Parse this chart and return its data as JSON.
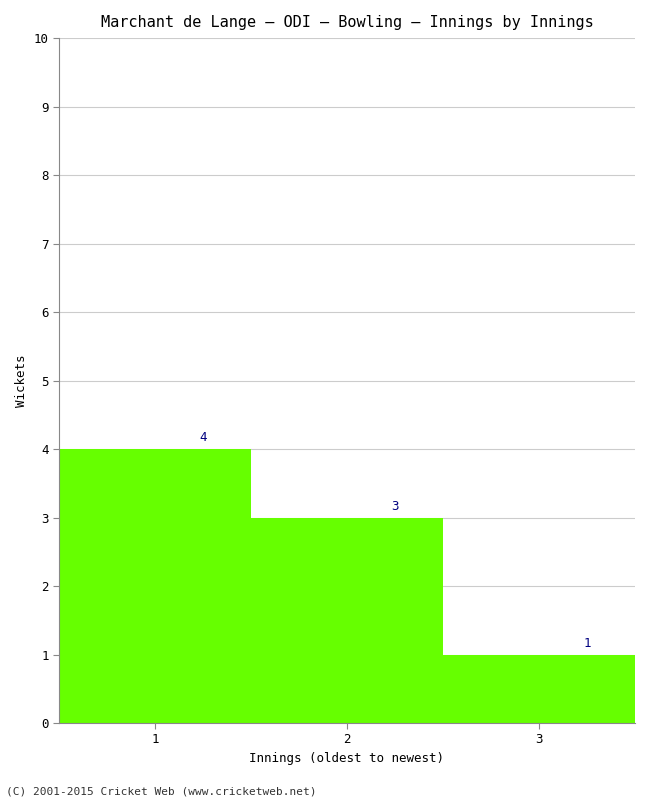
{
  "title": "Marchant de Lange – ODI – Bowling – Innings by Innings",
  "xlabel": "Innings (oldest to newest)",
  "ylabel": "Wickets",
  "categories": [
    "1",
    "2",
    "3"
  ],
  "values": [
    4,
    3,
    1
  ],
  "bar_color": "#66ff00",
  "bar_edge_color": "#66ff00",
  "ylim": [
    0,
    10
  ],
  "yticks": [
    0,
    1,
    2,
    3,
    4,
    5,
    6,
    7,
    8,
    9,
    10
  ],
  "annotation_color": "#000080",
  "annotation_fontsize": 9,
  "title_fontsize": 11,
  "axis_label_fontsize": 9,
  "tick_fontsize": 9,
  "footer_text": "(C) 2001-2015 Cricket Web (www.cricketweb.net)",
  "footer_fontsize": 8,
  "background_color": "#ffffff",
  "grid_color": "#cccccc",
  "annotation_offsets": [
    0.25,
    0.25,
    0.25
  ]
}
